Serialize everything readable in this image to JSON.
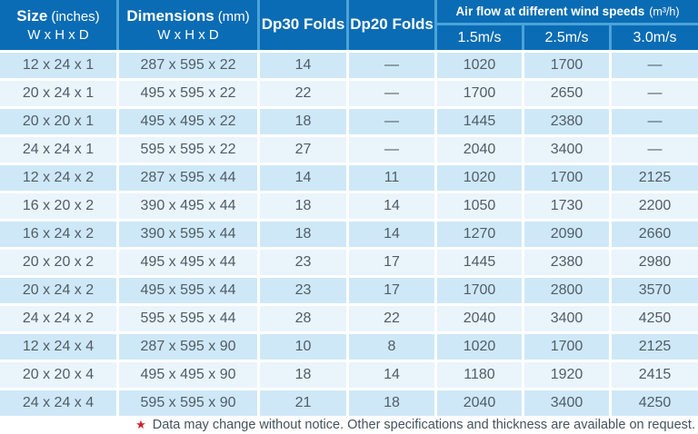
{
  "colors": {
    "header_bg": "#0a6cb4",
    "header_divider": "#4ba3d9",
    "row_odd_bg": "#cfe8f7",
    "row_even_bg": "#eaf4fb",
    "body_text": "#4f5d68",
    "note_text": "#45525c",
    "star_red": "#d1202a",
    "grid_line": "#ffffff"
  },
  "table": {
    "headers": {
      "size_title": "Size",
      "size_unit": "(inches)",
      "size_sub": "W x H x D",
      "dim_title": "Dimensions",
      "dim_unit": "(mm)",
      "dim_sub": "W x H x D",
      "dp30": "Dp30 Folds",
      "dp20": "Dp20 Folds",
      "airflow_title": "Air flow at different wind speeds",
      "airflow_unit": "(m³/h)",
      "speeds": [
        "1.5m/s",
        "2.5m/s",
        "3.0m/s"
      ]
    },
    "rows": [
      {
        "size": "12 x 24 x 1",
        "mm": "287 x 595 x 22",
        "dp30": "14",
        "dp20": "—",
        "v15": "1020",
        "v25": "1700",
        "v30": "—"
      },
      {
        "size": "20 x 24 x 1",
        "mm": "495 x 595 x 22",
        "dp30": "22",
        "dp20": "—",
        "v15": "1700",
        "v25": "2650",
        "v30": "—"
      },
      {
        "size": "20 x 20 x 1",
        "mm": "495 x 495 x 22",
        "dp30": "18",
        "dp20": "—",
        "v15": "1445",
        "v25": "2380",
        "v30": "—"
      },
      {
        "size": "24 x 24 x 1",
        "mm": "595 x 595 x 22",
        "dp30": "27",
        "dp20": "—",
        "v15": "2040",
        "v25": "3400",
        "v30": "—"
      },
      {
        "size": "12 x 24 x 2",
        "mm": "287 x 595 x 44",
        "dp30": "14",
        "dp20": "11",
        "v15": "1020",
        "v25": "1700",
        "v30": "2125"
      },
      {
        "size": "16 x 20 x 2",
        "mm": "390 x 495 x 44",
        "dp30": "18",
        "dp20": "14",
        "v15": "1050",
        "v25": "1730",
        "v30": "2200"
      },
      {
        "size": "16 x 24 x 2",
        "mm": "390 x 595 x 44",
        "dp30": "18",
        "dp20": "14",
        "v15": "1270",
        "v25": "2090",
        "v30": "2660"
      },
      {
        "size": "20 x 20 x 2",
        "mm": "495 x 495 x 44",
        "dp30": "23",
        "dp20": "17",
        "v15": "1445",
        "v25": "2380",
        "v30": "2980"
      },
      {
        "size": "20 x 24 x 2",
        "mm": "495 x 595 x 44",
        "dp30": "23",
        "dp20": "17",
        "v15": "1700",
        "v25": "2800",
        "v30": "3570"
      },
      {
        "size": "24 x 24 x 2",
        "mm": "595 x 595 x 44",
        "dp30": "28",
        "dp20": "22",
        "v15": "2040",
        "v25": "3400",
        "v30": "4250"
      },
      {
        "size": "12 x 24 x 4",
        "mm": "287 x 595 x 90",
        "dp30": "10",
        "dp20": "8",
        "v15": "1020",
        "v25": "1700",
        "v30": "2125"
      },
      {
        "size": "20 x 20 x 4",
        "mm": "495 x 495 x 90",
        "dp30": "18",
        "dp20": "14",
        "v15": "1180",
        "v25": "1920",
        "v30": "2415"
      },
      {
        "size": "24 x 24 x 4",
        "mm": "595 x 595 x 90",
        "dp30": "21",
        "dp20": "18",
        "v15": "2040",
        "v25": "3400",
        "v30": "4250"
      }
    ]
  },
  "footnote": {
    "star": "★",
    "text": "Data may change without notice. Other specifications and thickness are available on request."
  },
  "chart_data": {
    "type": "table",
    "title": "Air filter size, folds and air flow specifications",
    "columns": [
      "Size (inches) W x H x D",
      "Dimensions (mm) W x H x D",
      "Dp30 Folds",
      "Dp20 Folds",
      "Air flow at 1.5m/s (m³/h)",
      "Air flow at 2.5m/s (m³/h)",
      "Air flow at 3.0m/s (m³/h)"
    ],
    "rows": [
      [
        "12 x 24 x 1",
        "287 x 595 x 22",
        "14",
        "—",
        "1020",
        "1700",
        "—"
      ],
      [
        "20 x 24 x 1",
        "495 x 595 x 22",
        "22",
        "—",
        "1700",
        "2650",
        "—"
      ],
      [
        "20 x 20 x 1",
        "495 x 495 x 22",
        "18",
        "—",
        "1445",
        "2380",
        "—"
      ],
      [
        "24 x 24 x 1",
        "595 x 595 x 22",
        "27",
        "—",
        "2040",
        "3400",
        "—"
      ],
      [
        "12 x 24 x 2",
        "287 x 595 x 44",
        "14",
        "11",
        "1020",
        "1700",
        "2125"
      ],
      [
        "16 x 20 x 2",
        "390 x 495 x 44",
        "18",
        "14",
        "1050",
        "1730",
        "2200"
      ],
      [
        "16 x 24 x 2",
        "390 x 595 x 44",
        "18",
        "14",
        "1270",
        "2090",
        "2660"
      ],
      [
        "20 x 20 x 2",
        "495 x 495 x 44",
        "23",
        "17",
        "1445",
        "2380",
        "2980"
      ],
      [
        "20 x 24 x 2",
        "495 x 595 x 44",
        "23",
        "17",
        "1700",
        "2800",
        "3570"
      ],
      [
        "24 x 24 x 2",
        "595 x 595 x 44",
        "28",
        "22",
        "2040",
        "3400",
        "4250"
      ],
      [
        "12 x 24 x 4",
        "287 x 595 x 90",
        "10",
        "8",
        "1020",
        "1700",
        "2125"
      ],
      [
        "20 x 20 x 4",
        "495 x 495 x 90",
        "18",
        "14",
        "1180",
        "1920",
        "2415"
      ],
      [
        "24 x 24 x 4",
        "595 x 595 x 90",
        "21",
        "18",
        "2040",
        "3400",
        "4250"
      ]
    ],
    "footnote": "★ Data may change without notice. Other specifications and thickness are available on request."
  }
}
